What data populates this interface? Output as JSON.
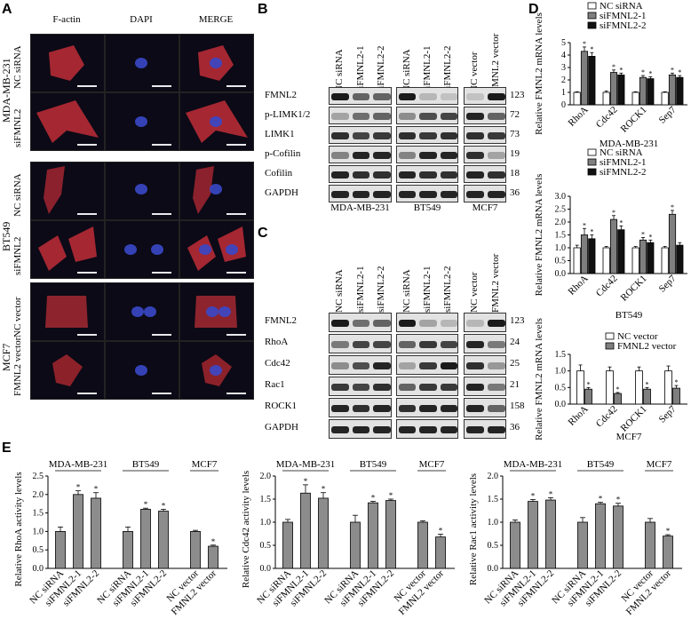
{
  "panels": {
    "A": "A",
    "B": "B",
    "C": "C",
    "D": "D",
    "E": "E"
  },
  "panel_a": {
    "columns": [
      "F-actin",
      "DAPI",
      "MERGE"
    ],
    "rows": [
      "NC siRNA",
      "siFMNL2",
      "NC siRNA",
      "siFMNL2",
      "NC vector",
      "FMNL2 vector"
    ],
    "groups": [
      "MDA-MB-231",
      "BT549",
      "MCF7"
    ]
  },
  "panel_b": {
    "groups": [
      {
        "name": "MDA-MB-231",
        "lanes": [
          "NC siRNA",
          "siFMNL2-1",
          "siFMNL2-2"
        ]
      },
      {
        "name": "BT549",
        "lanes": [
          "NC siRNA",
          "siFMNL2-1",
          "siFMNL2-2"
        ]
      },
      {
        "name": "MCF7",
        "lanes": [
          "NC vector",
          "FMNL2 vector"
        ]
      }
    ],
    "proteins": [
      "FMNL2",
      "p-LIMK1/2",
      "LIMK1",
      "p-Cofilin",
      "Cofilin",
      "GAPDH"
    ],
    "kda": [
      "123",
      "72",
      "73",
      "19",
      "18",
      "36"
    ]
  },
  "panel_c": {
    "groups": [
      {
        "name": "MDA-MB-231",
        "lanes": [
          "NC siRNA",
          "siFMNL2-1",
          "siFMNL2-2"
        ]
      },
      {
        "name": "BT549",
        "lanes": [
          "NC siRNA",
          "siFMNL2-1",
          "siFMNL2-2"
        ]
      },
      {
        "name": "MCF7",
        "lanes": [
          "NC vector",
          "FMNL2 vector"
        ]
      }
    ],
    "proteins": [
      "FMNL2",
      "RhoA",
      "Cdc42",
      "Rac1",
      "ROCK1",
      "GAPDH"
    ],
    "kda": [
      "123",
      "24",
      "25",
      "21",
      "158",
      "36"
    ]
  },
  "chart_data": [
    {
      "type": "bar",
      "id": "D1",
      "ylabel": "Relative FMNL2 mRNA levels",
      "xlabel": "MDA-MB-231",
      "categories": [
        "RhoA",
        "Cdc42",
        "ROCK1",
        "Sep7"
      ],
      "ylim": [
        0,
        5
      ],
      "yticks": [
        0,
        1,
        2,
        3,
        4,
        5
      ],
      "series": [
        {
          "name": "NC siRNA",
          "color": "#ffffff",
          "values": [
            1.0,
            1.0,
            1.0,
            1.0
          ],
          "err": [
            0.05,
            0.1,
            0.05,
            0.05
          ],
          "star": [
            false,
            false,
            false,
            false
          ]
        },
        {
          "name": "siFMNL2-1",
          "color": "#7f7f7f",
          "values": [
            4.3,
            2.6,
            2.2,
            2.4
          ],
          "err": [
            0.35,
            0.2,
            0.15,
            0.15
          ],
          "star": [
            true,
            true,
            true,
            true
          ]
        },
        {
          "name": "siFMNL2-2",
          "color": "#111111",
          "values": [
            3.9,
            2.4,
            2.1,
            2.2
          ],
          "err": [
            0.3,
            0.15,
            0.15,
            0.15
          ],
          "star": [
            true,
            true,
            true,
            true
          ]
        }
      ]
    },
    {
      "type": "bar",
      "id": "D2",
      "ylabel": "Relative FMNL2 mRNA levels",
      "xlabel": "BT549",
      "categories": [
        "RhoA",
        "Cdc42",
        "ROCK1",
        "Sep7"
      ],
      "ylim": [
        0,
        3
      ],
      "yticks": [
        0,
        0.5,
        1.0,
        1.5,
        2.0,
        2.5,
        3.0
      ],
      "series": [
        {
          "name": "NC siRNA",
          "color": "#ffffff",
          "values": [
            1.0,
            1.0,
            1.0,
            1.0
          ],
          "err": [
            0.1,
            0.05,
            0.05,
            0.05
          ],
          "star": [
            false,
            false,
            false,
            false
          ]
        },
        {
          "name": "siFMNL2-1",
          "color": "#7f7f7f",
          "values": [
            1.5,
            2.1,
            1.3,
            2.3
          ],
          "err": [
            0.25,
            0.15,
            0.1,
            0.15
          ],
          "star": [
            true,
            true,
            true,
            true
          ]
        },
        {
          "name": "siFMNL2-2",
          "color": "#111111",
          "values": [
            1.35,
            1.7,
            1.2,
            1.1
          ],
          "err": [
            0.15,
            0.15,
            0.1,
            0.1
          ],
          "star": [
            true,
            true,
            true,
            false
          ]
        }
      ]
    },
    {
      "type": "bar",
      "id": "D3",
      "ylabel": "Relative FMNL2 mRNA levels",
      "xlabel": "MCF7",
      "categories": [
        "RhoA",
        "Cdc42",
        "ROCK1",
        "Sep7"
      ],
      "ylim": [
        0,
        1.5
      ],
      "yticks": [
        0,
        0.5,
        1.0,
        1.5
      ],
      "series": [
        {
          "name": "NC vector",
          "color": "#ffffff",
          "values": [
            1.0,
            1.0,
            1.0,
            1.0
          ],
          "err": [
            0.18,
            0.12,
            0.12,
            0.15
          ],
          "star": [
            false,
            false,
            false,
            false
          ]
        },
        {
          "name": "FMNL2 vector",
          "color": "#7f7f7f",
          "values": [
            0.45,
            0.32,
            0.45,
            0.48
          ],
          "err": [
            0.05,
            0.03,
            0.05,
            0.08
          ],
          "star": [
            true,
            true,
            true,
            true
          ]
        }
      ]
    },
    {
      "type": "bar",
      "id": "E1",
      "ylabel": "Relative RhoA activity levels",
      "ylim": [
        0,
        2.5
      ],
      "yticks": [
        0,
        0.5,
        1.0,
        1.5,
        2.0,
        2.5
      ],
      "groups": [
        "MDA-MB-231",
        "BT549",
        "MCF7"
      ],
      "categories": [
        "NC siRNA",
        "siFMNL2-1",
        "siFMNL2-2",
        "NC siRNA",
        "siFMNL2-1",
        "siFMNL2-2",
        "NC vector",
        "FMNL2 vector"
      ],
      "values": [
        1.0,
        2.0,
        1.9,
        1.0,
        1.6,
        1.55,
        1.0,
        0.6
      ],
      "err": [
        0.12,
        0.1,
        0.15,
        0.12,
        0.03,
        0.05,
        0.03,
        0.03
      ],
      "star": [
        false,
        true,
        true,
        false,
        true,
        true,
        false,
        true
      ]
    },
    {
      "type": "bar",
      "id": "E2",
      "ylabel": "Relative Cdc42 activity levels",
      "ylim": [
        0,
        2.0
      ],
      "yticks": [
        0,
        0.5,
        1.0,
        1.5,
        2.0
      ],
      "groups": [
        "MDA-MB-231",
        "BT549",
        "MCF7"
      ],
      "categories": [
        "NC siRNA",
        "siFMNL2-1",
        "siFMNL2-2",
        "NC siRNA",
        "siFMNL2-1",
        "siFMNL2-2",
        "NC vector",
        "FMNL2 vector"
      ],
      "values": [
        1.0,
        1.63,
        1.52,
        1.0,
        1.42,
        1.47,
        1.0,
        0.68
      ],
      "err": [
        0.06,
        0.18,
        0.12,
        0.15,
        0.03,
        0.03,
        0.03,
        0.06
      ],
      "star": [
        false,
        true,
        true,
        false,
        true,
        true,
        false,
        true
      ]
    },
    {
      "type": "bar",
      "id": "E3",
      "ylabel": "Relative Rac1 activity levels",
      "ylim": [
        0,
        2.0
      ],
      "yticks": [
        0,
        0.5,
        1.0,
        1.5,
        2.0
      ],
      "groups": [
        "MDA-MB-231",
        "BT549",
        "MCF7"
      ],
      "categories": [
        "NC siRNA",
        "siFMNL2-1",
        "siFMNL2-2",
        "NC siRNA",
        "siFMNL2-1",
        "siFMNL2-2",
        "NC vector",
        "FMNL2 vector"
      ],
      "values": [
        1.0,
        1.45,
        1.48,
        1.0,
        1.4,
        1.35,
        1.0,
        0.7
      ],
      "err": [
        0.05,
        0.04,
        0.05,
        0.1,
        0.03,
        0.06,
        0.08,
        0.03
      ],
      "star": [
        false,
        true,
        true,
        false,
        true,
        true,
        false,
        true
      ]
    }
  ]
}
